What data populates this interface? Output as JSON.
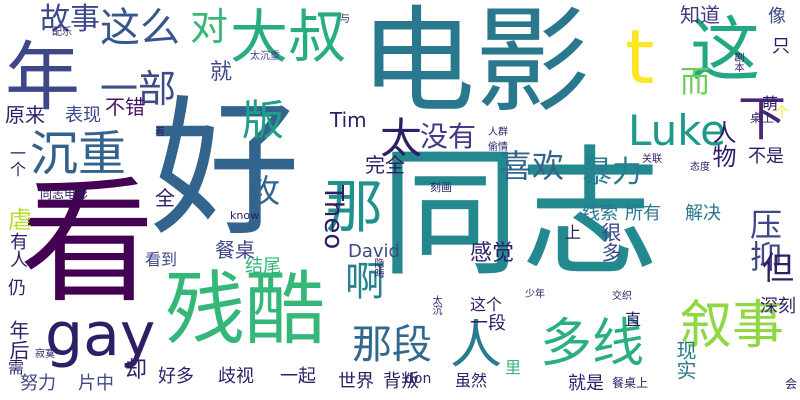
{
  "words": [
    {
      "t": "好",
      "c": "#32648e",
      "o": "h"
    },
    {
      "t": "同志",
      "c": "#23898e",
      "o": "h"
    },
    {
      "t": "电影",
      "c": "#2a788e",
      "o": "h"
    },
    {
      "t": "看",
      "c": "#440154",
      "o": "h"
    },
    {
      "t": "残酷",
      "c": "#35b779",
      "o": "h"
    },
    {
      "t": "年",
      "c": "#3f4788",
      "o": "h"
    },
    {
      "t": "t",
      "c": "#fde725",
      "o": "h"
    },
    {
      "t": "这",
      "c": "#22a884",
      "o": "h"
    },
    {
      "t": "大叔",
      "c": "#27ad81",
      "o": "h"
    },
    {
      "t": "这么",
      "c": "#39568c",
      "o": "h"
    },
    {
      "t": "沉重",
      "c": "#33638d",
      "o": "h"
    },
    {
      "t": "gay",
      "c": "#2d1e65",
      "o": "h"
    },
    {
      "t": "叙事",
      "c": "#90d743",
      "o": "h"
    },
    {
      "t": "多线",
      "c": "#2ab07f",
      "o": "h"
    },
    {
      "t": "那段",
      "c": "#31688e",
      "o": "h"
    },
    {
      "t": "那",
      "c": "#21918c",
      "o": "h"
    },
    {
      "t": "人",
      "c": "#287c8e",
      "o": "h"
    },
    {
      "t": "版",
      "c": "#1f9e89",
      "o": "h"
    },
    {
      "t": "太",
      "c": "#2d1e65",
      "o": "h"
    },
    {
      "t": "一部",
      "c": "#3e4a89",
      "o": "h"
    },
    {
      "t": "故事",
      "c": "#3e4989",
      "o": "h"
    },
    {
      "t": "对",
      "c": "#37b878",
      "o": "h"
    },
    {
      "t": "Luke",
      "c": "#1f998a",
      "o": "h"
    },
    {
      "t": "下",
      "c": "#482576",
      "o": "h"
    },
    {
      "t": "暴力",
      "c": "#287d8e",
      "o": "h"
    },
    {
      "t": "喜欢",
      "c": "#32658e",
      "o": "h"
    },
    {
      "t": "没有",
      "c": "#443983",
      "o": "h"
    },
    {
      "t": "啊",
      "c": "#26828e",
      "o": "h"
    },
    {
      "t": "攻",
      "c": "#31678e",
      "o": "h"
    },
    {
      "t": "Theo",
      "c": "#2d1e65",
      "o": "v"
    },
    {
      "t": "压抑",
      "c": "#3f4788",
      "o": "v"
    },
    {
      "t": "就",
      "c": "#3f4788",
      "o": "h"
    },
    {
      "t": "而",
      "c": "#6ece58",
      "o": "h"
    },
    {
      "t": "人物",
      "c": "#2d1e65",
      "o": "v"
    },
    {
      "t": "知道",
      "c": "#453882",
      "o": "h"
    },
    {
      "t": "像",
      "c": "#3f4788",
      "o": "h"
    },
    {
      "t": "只",
      "c": "#2d1e65",
      "o": "h"
    },
    {
      "t": "萌",
      "c": "#2d1e65",
      "o": "v"
    },
    {
      "t": "不错",
      "c": "#471365",
      "o": "h"
    },
    {
      "t": "原来",
      "c": "#2d1e65",
      "o": "h"
    },
    {
      "t": "表现",
      "c": "#3f4788",
      "o": "h"
    },
    {
      "t": "Tim",
      "c": "#2d1e65",
      "o": "h"
    },
    {
      "t": "完全",
      "c": "#2d1e65",
      "o": "h"
    },
    {
      "t": "全",
      "c": "#2d1e65",
      "o": "h"
    },
    {
      "t": "一个",
      "c": "#2d1e65",
      "o": "v"
    },
    {
      "t": "虐",
      "c": "#b5de2b",
      "o": "h"
    },
    {
      "t": "有人",
      "c": "#2d1e65",
      "o": "v"
    },
    {
      "t": "餐桌",
      "c": "#3f4788",
      "o": "h"
    },
    {
      "t": "David",
      "c": "#3f4788",
      "o": "h"
    },
    {
      "t": "感觉",
      "c": "#2d1e65",
      "o": "h"
    },
    {
      "t": "线索",
      "c": "#2a788e",
      "o": "h"
    },
    {
      "t": "所有",
      "c": "#2a788e",
      "o": "h"
    },
    {
      "t": "解决",
      "c": "#2a788e",
      "o": "h"
    },
    {
      "t": "很多",
      "c": "#3f4788",
      "o": "v"
    },
    {
      "t": "上",
      "c": "#2d1e65",
      "o": "h"
    },
    {
      "t": "不是",
      "c": "#2d1e65",
      "o": "h"
    },
    {
      "t": "看到",
      "c": "#3f4788",
      "o": "h"
    },
    {
      "t": "结尾",
      "c": "#35b779",
      "o": "h"
    },
    {
      "t": "这个",
      "c": "#2d1e65",
      "o": "h"
    },
    {
      "t": "一段",
      "c": "#2d1e65",
      "o": "h"
    },
    {
      "t": "里",
      "c": "#35b779",
      "o": "h"
    },
    {
      "t": "现实",
      "c": "#2a788e",
      "o": "v"
    },
    {
      "t": "直",
      "c": "#2d1e65",
      "o": "h"
    },
    {
      "t": "但",
      "c": "#2d1e65",
      "o": "h"
    },
    {
      "t": "深刻",
      "c": "#2d1e65",
      "o": "h"
    },
    {
      "t": "年后",
      "c": "#2d1e65",
      "o": "v"
    },
    {
      "t": "仍",
      "c": "#2d1e65",
      "o": "h"
    },
    {
      "t": "需",
      "c": "#2d1e65",
      "o": "h"
    },
    {
      "t": "努力",
      "c": "#3f4788",
      "o": "h"
    },
    {
      "t": "片中",
      "c": "#3f4788",
      "o": "h"
    },
    {
      "t": "却",
      "c": "#2d1e65",
      "o": "h"
    },
    {
      "t": "好多",
      "c": "#2d1e65",
      "o": "h"
    },
    {
      "t": "歧视",
      "c": "#2d1e65",
      "o": "h"
    },
    {
      "t": "一起",
      "c": "#2d1e65",
      "o": "h"
    },
    {
      "t": "世界",
      "c": "#2d1e65",
      "o": "h"
    },
    {
      "t": "背叛",
      "c": "#2d1e65",
      "o": "h"
    },
    {
      "t": "don",
      "c": "#2d1e65",
      "o": "h"
    },
    {
      "t": "虽然",
      "c": "#2d1e65",
      "o": "h"
    },
    {
      "t": "就是",
      "c": "#2d1e65",
      "o": "h"
    },
    {
      "t": "会",
      "c": "#2d1e65",
      "o": "h"
    },
    {
      "t": "know",
      "c": "#2d1e65",
      "o": "h"
    },
    {
      "t": "太沉重",
      "c": "#3f4788",
      "o": "h"
    },
    {
      "t": "配乐",
      "c": "#2d1e65",
      "o": "h"
    },
    {
      "t": "与",
      "c": "#2d1e65",
      "o": "h"
    },
    {
      "t": "同志电影",
      "c": "#2d1e65",
      "o": "h"
    },
    {
      "t": "着",
      "c": "#2d1e65",
      "o": "h"
    },
    {
      "t": "人群",
      "c": "#2d1e65",
      "o": "h"
    },
    {
      "t": "偷情",
      "c": "#2d1e65",
      "o": "h"
    },
    {
      "t": "关联",
      "c": "#2d1e65",
      "o": "h"
    },
    {
      "t": "态度",
      "c": "#2d1e65",
      "o": "h"
    },
    {
      "t": "刻画",
      "c": "#2d1e65",
      "o": "h"
    },
    {
      "t": "隐晦",
      "c": "#2d1e65",
      "o": "v"
    },
    {
      "t": "寂寞",
      "c": "#2d1e65",
      "o": "h"
    },
    {
      "t": "太沉",
      "c": "#2d1e65",
      "o": "v"
    },
    {
      "t": "少年",
      "c": "#2d1e65",
      "o": "h"
    },
    {
      "t": "交织",
      "c": "#2d1e65",
      "o": "h"
    },
    {
      "t": "剧本",
      "c": "#2d1e65",
      "o": "v"
    },
    {
      "t": "桌上",
      "c": "#2d1e65",
      "o": "h"
    },
    {
      "t": "个",
      "c": "#fde725",
      "o": "h"
    },
    {
      "t": "餐桌上",
      "c": "#2d1e65",
      "o": "h"
    }
  ]
}
